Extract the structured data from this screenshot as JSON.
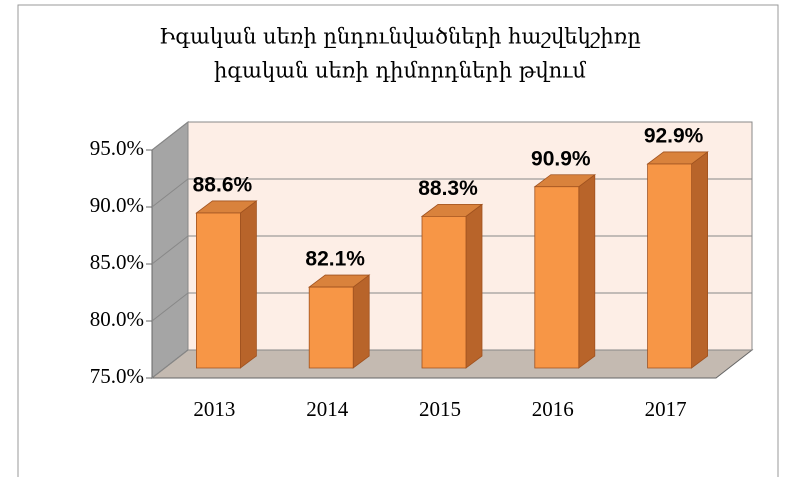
{
  "chart_data": {
    "type": "bar3d",
    "title": [
      "Իգական սեռի ընդունվածների հաշվեկշիռը",
      "իգական սեռի դիմորդների թվում"
    ],
    "categories": [
      "2013",
      "2014",
      "2015",
      "2016",
      "2017"
    ],
    "values": [
      88.6,
      82.1,
      88.3,
      90.9,
      92.9
    ],
    "value_labels": [
      "88.6%",
      "82.1%",
      "88.3%",
      "90.9%",
      "92.9%"
    ],
    "color": "#f79646",
    "ylim": [
      75,
      95
    ],
    "yticks": [
      {
        "value": 75,
        "label": "75.0%"
      },
      {
        "value": 80,
        "label": "80.0%"
      },
      {
        "value": 85,
        "label": "85.0%"
      },
      {
        "value": 90,
        "label": "90.0%"
      },
      {
        "value": 95,
        "label": "95.0%"
      }
    ],
    "grid": true
  }
}
